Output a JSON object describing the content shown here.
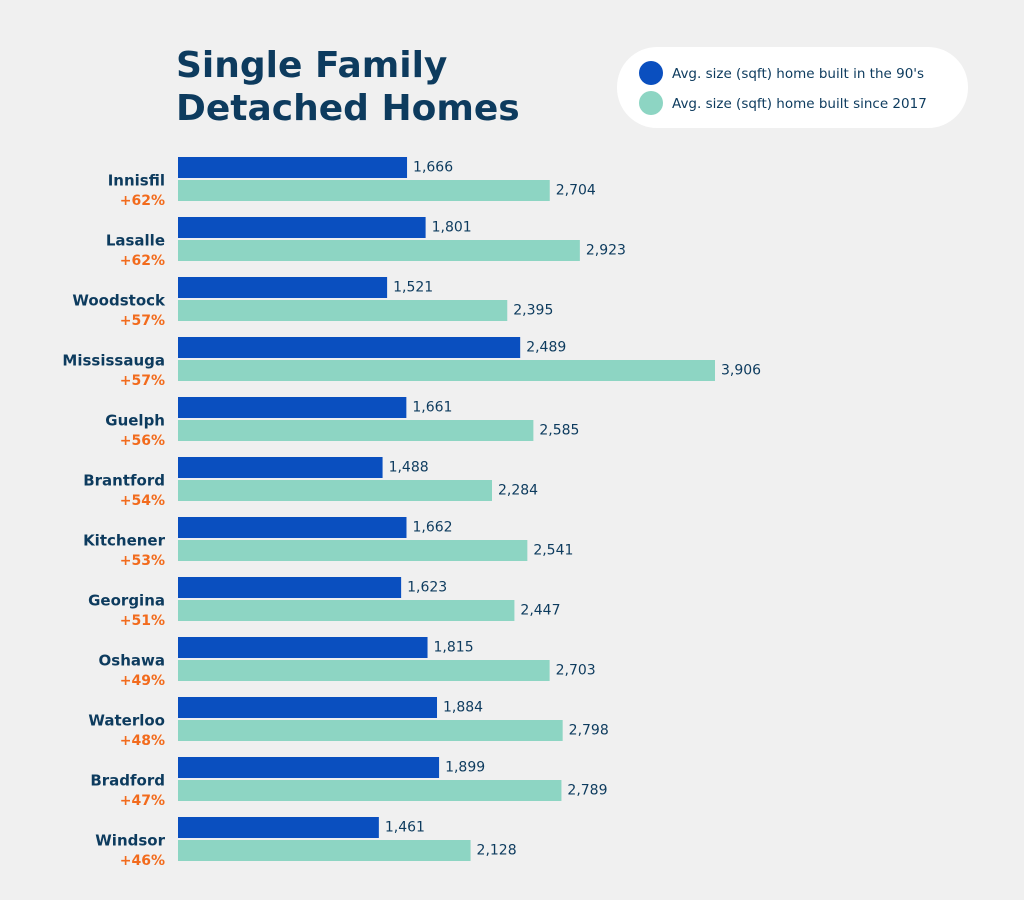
{
  "chart_data": {
    "type": "bar",
    "orientation": "horizontal",
    "title": "Single Family Detached Homes",
    "categories": [
      "Innisfil",
      "Lasalle",
      "Woodstock",
      "Mississauga",
      "Guelph",
      "Brantford",
      "Kitchener",
      "Georgina",
      "Oshawa",
      "Waterloo",
      "Bradford",
      "Windsor"
    ],
    "change_labels": [
      "+62%",
      "+62%",
      "+57%",
      "+57%",
      "+56%",
      "+54%",
      "+53%",
      "+51%",
      "+49%",
      "+48%",
      "+47%",
      "+46%"
    ],
    "series": [
      {
        "name": "Avg. size (sqft) home built in the 90's",
        "color": "#0a4fbf",
        "values": [
          1666,
          1801,
          1521,
          2489,
          1661,
          1488,
          1662,
          1623,
          1815,
          1884,
          1899,
          1461
        ],
        "value_labels": [
          "1,666",
          "1,801",
          "1,521",
          "2,489",
          "1,661",
          "1,488",
          "1,662",
          "1,623",
          "1,815",
          "1,884",
          "1,899",
          "1,461"
        ]
      },
      {
        "name": "Avg. size (sqft) home built since 2017",
        "color": "#8dd5c3",
        "values": [
          2704,
          2923,
          2395,
          3906,
          2585,
          2284,
          2541,
          2447,
          2703,
          2798,
          2789,
          2128
        ],
        "value_labels": [
          "2,704",
          "2,923",
          "2,395",
          "3,906",
          "2,585",
          "2,284",
          "2,541",
          "2,447",
          "2,703",
          "2,798",
          "2,789",
          "2,128"
        ]
      }
    ],
    "legend": "top-right"
  }
}
